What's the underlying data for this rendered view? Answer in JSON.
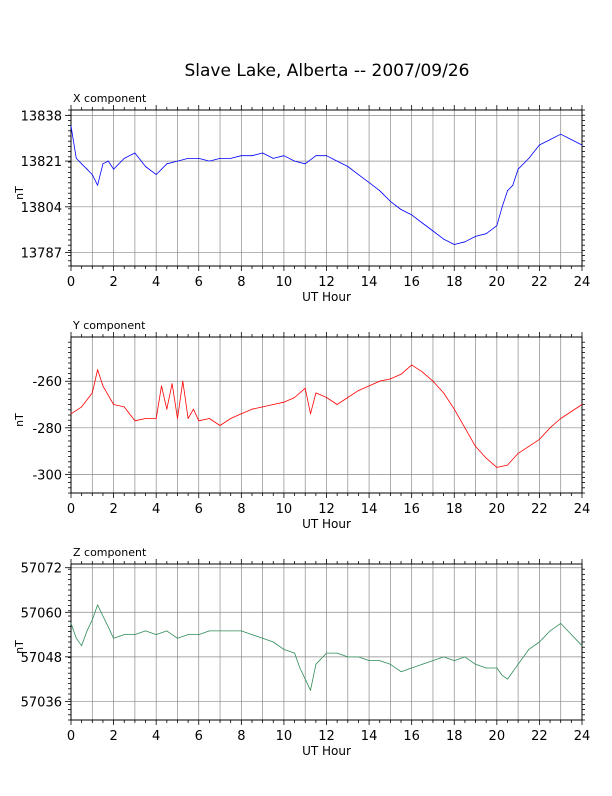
{
  "title": "Slave Lake, Alberta -- 2007/09/26",
  "chart_data": [
    {
      "type": "line",
      "title": "X component",
      "xlabel": "UT Hour",
      "ylabel": "nT",
      "xlim": [
        0,
        24
      ],
      "ylim": [
        13782,
        13840
      ],
      "xticks": [
        0,
        2,
        4,
        6,
        8,
        10,
        12,
        14,
        16,
        18,
        20,
        22,
        24
      ],
      "yticks": [
        13787,
        13804,
        13821,
        13838
      ],
      "grid": true,
      "color": "#0000ff",
      "series": [
        {
          "x": [
            0,
            0.25,
            0.5,
            0.75,
            1.0,
            1.25,
            1.5,
            1.75,
            2.0,
            2.5,
            3.0,
            3.5,
            4.0,
            4.5,
            5.0,
            5.5,
            6.0,
            6.5,
            7.0,
            7.5,
            8.0,
            8.5,
            9.0,
            9.5,
            10.0,
            10.5,
            11.0,
            11.5,
            12.0,
            12.5,
            13.0,
            13.5,
            14.0,
            14.5,
            15.0,
            15.5,
            16.0,
            16.5,
            17.0,
            17.5,
            18.0,
            18.5,
            19.0,
            19.5,
            20.0,
            20.25,
            20.5,
            20.75,
            21.0,
            21.5,
            22.0,
            22.5,
            23.0,
            23.5,
            24.0
          ],
          "y": [
            13834,
            13822,
            13820,
            13818,
            13816,
            13812,
            13820,
            13821,
            13818,
            13822,
            13824,
            13819,
            13816,
            13820,
            13821,
            13822,
            13822,
            13821,
            13822,
            13822,
            13823,
            13823,
            13824,
            13822,
            13823,
            13821,
            13820,
            13823,
            13823,
            13821,
            13819,
            13816,
            13813,
            13810,
            13806,
            13803,
            13801,
            13798,
            13795,
            13792,
            13790,
            13791,
            13793,
            13794,
            13797,
            13804,
            13810,
            13812,
            13818,
            13822,
            13827,
            13829,
            13831,
            13829,
            13827
          ]
        }
      ]
    },
    {
      "type": "line",
      "title": "Y component",
      "xlabel": "UT Hour",
      "ylabel": "nT",
      "xlim": [
        0,
        24
      ],
      "ylim": [
        -308,
        -241
      ],
      "xticks": [
        0,
        2,
        4,
        6,
        8,
        10,
        12,
        14,
        16,
        18,
        20,
        22,
        24
      ],
      "yticks": [
        -260,
        -280,
        -300
      ],
      "grid": true,
      "color": "#ff0000",
      "series": [
        {
          "x": [
            0,
            0.5,
            1.0,
            1.25,
            1.5,
            2.0,
            2.5,
            3.0,
            3.5,
            4.0,
            4.25,
            4.5,
            4.75,
            5.0,
            5.25,
            5.5,
            5.75,
            6.0,
            6.5,
            7.0,
            7.5,
            8.0,
            8.5,
            9.0,
            9.5,
            10.0,
            10.5,
            11.0,
            11.25,
            11.5,
            12.0,
            12.5,
            13.0,
            13.5,
            14.0,
            14.5,
            15.0,
            15.5,
            16.0,
            16.5,
            17.0,
            17.5,
            18.0,
            18.5,
            19.0,
            19.5,
            20.0,
            20.5,
            21.0,
            21.5,
            22.0,
            22.5,
            23.0,
            23.5,
            24.0
          ],
          "y": [
            -274,
            -271,
            -265,
            -255,
            -262,
            -270,
            -271,
            -277,
            -276,
            -276,
            -262,
            -272,
            -261,
            -276,
            -260,
            -276,
            -272,
            -277,
            -276,
            -279,
            -276,
            -274,
            -272,
            -271,
            -270,
            -269,
            -267,
            -263,
            -274,
            -265,
            -267,
            -270,
            -267,
            -264,
            -262,
            -260,
            -259,
            -257,
            -253,
            -256,
            -260,
            -265,
            -272,
            -280,
            -288,
            -293,
            -297,
            -296,
            -291,
            -288,
            -285,
            -280,
            -276,
            -273,
            -270
          ]
        }
      ]
    },
    {
      "type": "line",
      "title": "Z component",
      "xlabel": "UT Hour",
      "ylabel": "nT",
      "xlim": [
        0,
        24
      ],
      "ylim": [
        57031,
        57073
      ],
      "xticks": [
        0,
        2,
        4,
        6,
        8,
        10,
        12,
        14,
        16,
        18,
        20,
        22,
        24
      ],
      "yticks": [
        57072,
        57060,
        57048,
        57036
      ],
      "grid": true,
      "color": "#2e8b57",
      "series": [
        {
          "x": [
            0,
            0.25,
            0.5,
            0.75,
            1.0,
            1.25,
            1.5,
            1.75,
            2.0,
            2.5,
            3.0,
            3.5,
            4.0,
            4.5,
            5.0,
            5.5,
            6.0,
            6.5,
            7.0,
            7.5,
            8.0,
            8.5,
            9.0,
            9.5,
            10.0,
            10.5,
            10.75,
            11.0,
            11.25,
            11.5,
            12.0,
            12.5,
            13.0,
            13.5,
            14.0,
            14.5,
            15.0,
            15.5,
            16.0,
            16.5,
            17.0,
            17.5,
            18.0,
            18.5,
            19.0,
            19.5,
            20.0,
            20.25,
            20.5,
            20.75,
            21.0,
            21.5,
            22.0,
            22.5,
            23.0,
            23.5,
            24.0
          ],
          "y": [
            57057,
            57053,
            57051,
            57055,
            57058,
            57062,
            57059,
            57056,
            57053,
            57054,
            57054,
            57055,
            57054,
            57055,
            57053,
            57054,
            57054,
            57055,
            57055,
            57055,
            57055,
            57054,
            57053,
            57052,
            57050,
            57049,
            57045,
            57042,
            57039,
            57046,
            57049,
            57049,
            57048,
            57048,
            57047,
            57047,
            57046,
            57044,
            57045,
            57046,
            57047,
            57048,
            57047,
            57048,
            57046,
            57045,
            57045,
            57043,
            57042,
            57044,
            57046,
            57050,
            57052,
            57055,
            57057,
            57054,
            57051
          ]
        }
      ]
    }
  ]
}
